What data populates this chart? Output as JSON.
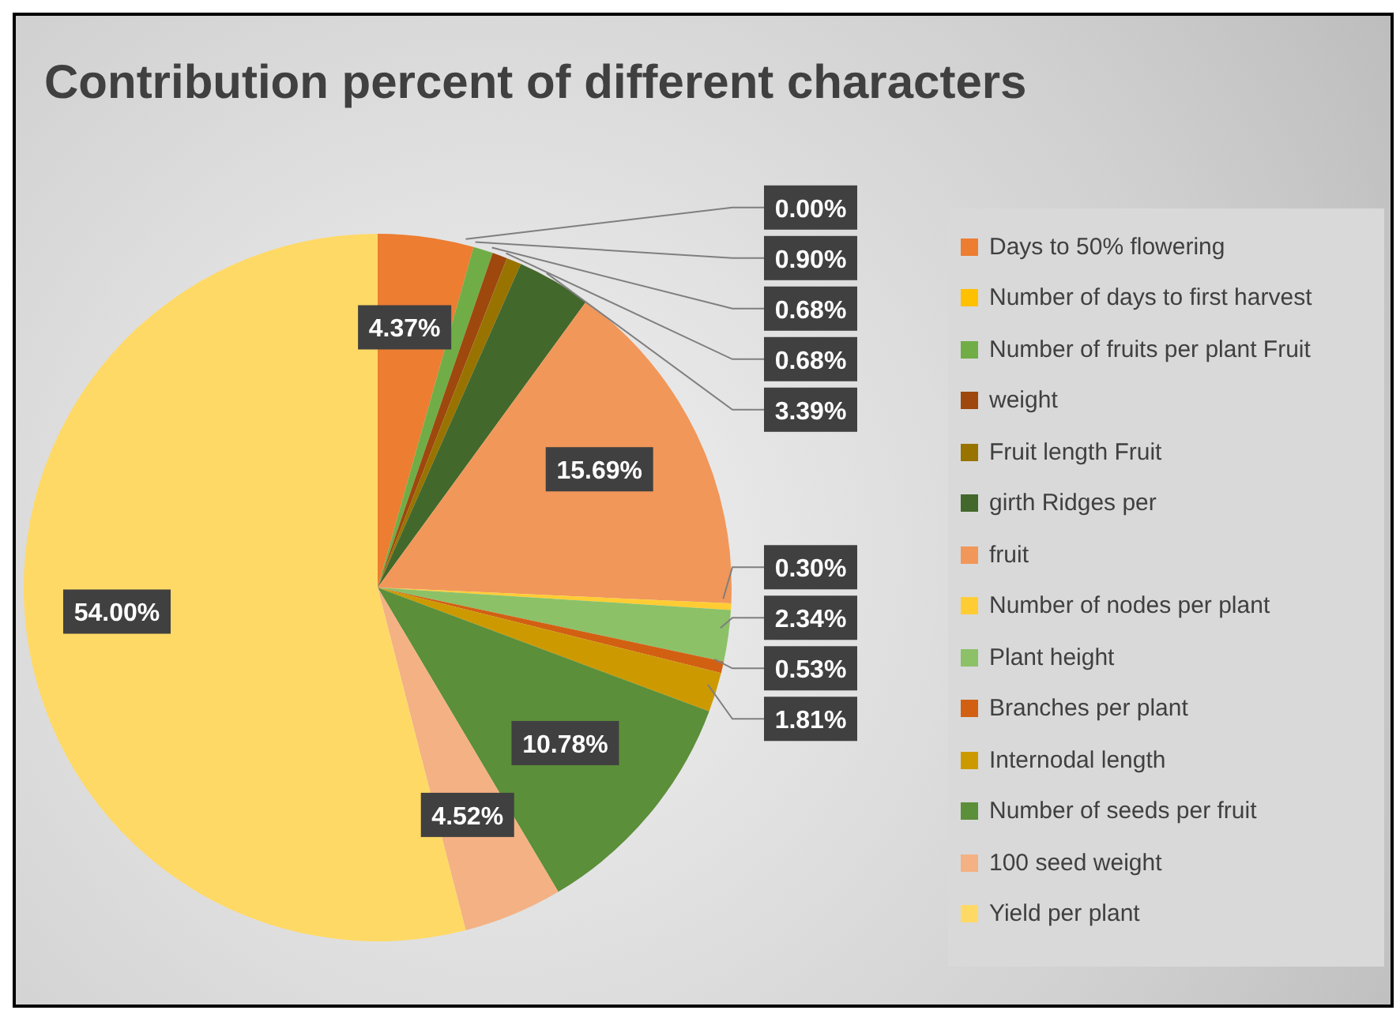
{
  "chart_data": {
    "type": "pie",
    "title": "Contribution percent of different characters",
    "categories": [
      "Days to 50% flowering",
      "Number of days to first harvest",
      "Number of fruits per plant Fruit",
      "weight",
      "Fruit length Fruit",
      "girth Ridges per",
      "fruit",
      "Number of nodes per plant",
      "Plant height",
      "Branches per plant",
      "Internodal length",
      "Number of seeds per fruit",
      "100 seed weight",
      "Yield per plant"
    ],
    "values": [
      4.37,
      0.0,
      0.9,
      0.68,
      0.68,
      3.39,
      15.69,
      0.3,
      2.34,
      0.53,
      1.81,
      10.78,
      4.52,
      54.0
    ],
    "value_labels": [
      "4.37%",
      "0.00%",
      "0.90%",
      "0.68%",
      "0.68%",
      "3.39%",
      "15.69%",
      "0.30%",
      "2.34%",
      "0.53%",
      "1.81%",
      "10.78%",
      "4.52%",
      "54.00%"
    ],
    "colors": [
      "#ed7d31",
      "#ffc000",
      "#70ad47",
      "#9e480e",
      "#997300",
      "#43682b",
      "#f1975a",
      "#ffcd33",
      "#8cc168",
      "#d26012",
      "#cc9a00",
      "#5b8f3a",
      "#f4b183",
      "#ffd966"
    ],
    "legend": "right"
  }
}
